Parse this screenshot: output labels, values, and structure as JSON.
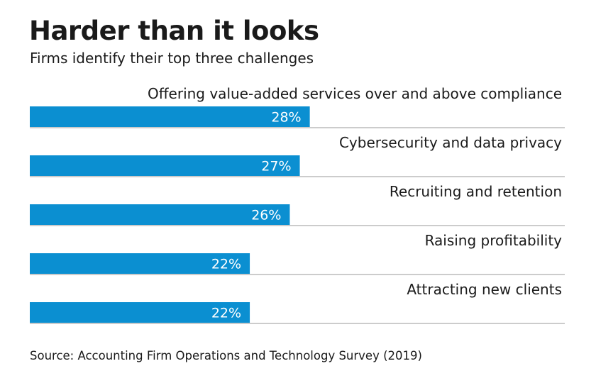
{
  "header": {
    "title": "Harder than it looks",
    "subtitle": "Firms identify their top three challenges"
  },
  "footer": {
    "source": "Source: Accounting Firm Operations and Technology Survey (2019)"
  },
  "colors": {
    "bar": "#0b8fd1",
    "separator": "#9a9a9a",
    "value_text": "#ffffff"
  },
  "chart_data": {
    "type": "bar",
    "orientation": "horizontal",
    "title": "Harder than it looks",
    "subtitle": "Firms identify their top three challenges",
    "categories": [
      "Offering value-added services over and above compliance",
      "Cybersecurity and data privacy",
      "Recruiting and retention",
      "Raising profitability",
      "Attracting new clients"
    ],
    "values": [
      28,
      27,
      26,
      22,
      22
    ],
    "value_labels": [
      "28%",
      "27%",
      "26%",
      "22%",
      "22%"
    ],
    "unit": "%",
    "xlim": [
      0,
      53.5
    ],
    "xlabel": "",
    "ylabel": "",
    "grid": false,
    "legend": "none"
  }
}
